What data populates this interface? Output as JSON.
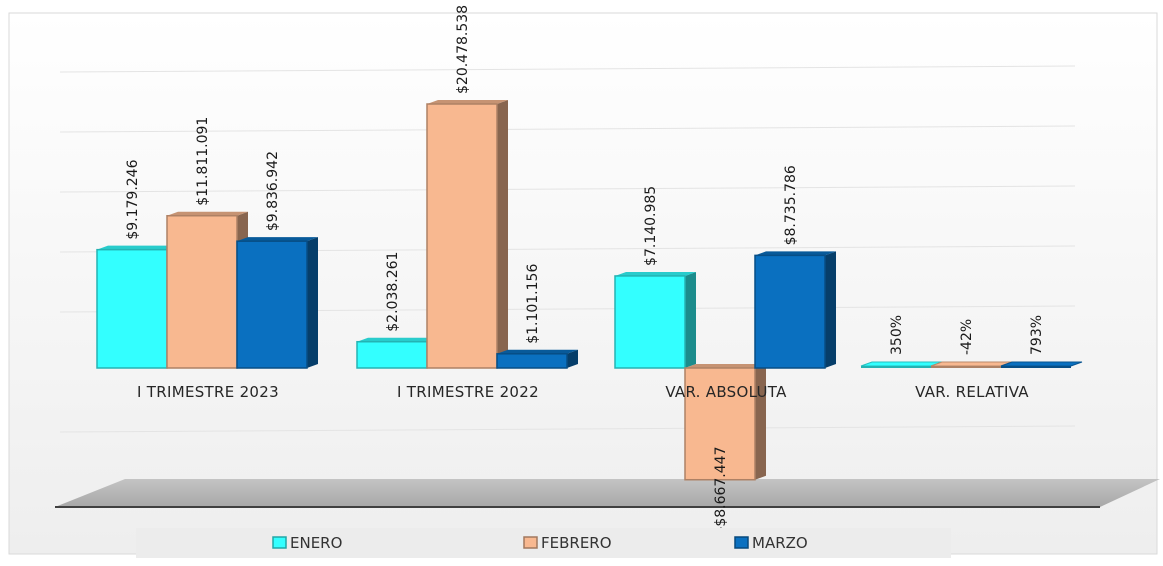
{
  "chart_data": {
    "type": "bar",
    "title": "",
    "xlabel": "",
    "ylabel": "",
    "categories": [
      "I TRIMESTRE 2023",
      "I TRIMESTRE 2022",
      "VAR. ABSOLUTA",
      "VAR. RELATIVA"
    ],
    "series": [
      {
        "name": "ENERO",
        "color": "#33ffff",
        "values": [
          9179246,
          2038261,
          7140985,
          350
        ],
        "labels": [
          "$9.179.246",
          "$2.038.261",
          "$7.140.985",
          "350%"
        ]
      },
      {
        "name": "FEBRERO",
        "color": "#f8b890",
        "values": [
          11811091,
          20478538,
          -8667447,
          -42
        ],
        "labels": [
          "$11.811.091",
          "$20.478.538",
          "-$8.667.447",
          "-42%"
        ]
      },
      {
        "name": "MARZO",
        "color": "#0a70c0",
        "values": [
          9836942,
          1101156,
          8735786,
          793
        ],
        "labels": [
          "$9.836.942",
          "$1.101.156",
          "$8.735.786",
          "793%"
        ]
      }
    ],
    "ylim": [
      -8667447,
      20478538
    ],
    "grid": true,
    "legend_position": "bottom",
    "three_d": true
  }
}
